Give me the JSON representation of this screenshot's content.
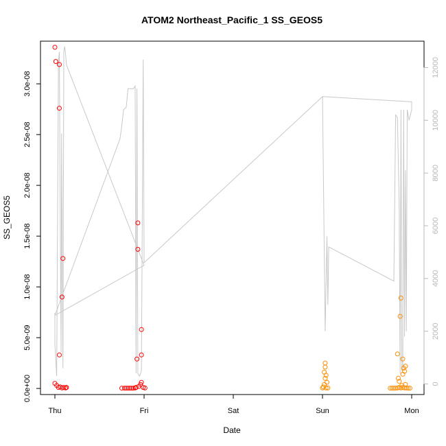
{
  "chart_data": {
    "type": "scatter",
    "title": "ATOM2 Northeast_Pacific_1 SS_GEOS5",
    "xlabel": "Date",
    "ylabel": "SS_GEOS5",
    "x_ticks": [
      "Thu",
      "Fri",
      "Sat",
      "Sun",
      "Mon"
    ],
    "xlim": [
      -0.05,
      4.1
    ],
    "ylim": [
      -6e-10,
      3.42e-08
    ],
    "y_ticks": [
      {
        "v": 0,
        "label": "0.0e+00"
      },
      {
        "v": 5e-09,
        "label": "5.0e-09"
      },
      {
        "v": 1e-08,
        "label": "1.0e-08"
      },
      {
        "v": 1.5e-08,
        "label": "1.5e-08"
      },
      {
        "v": 2e-08,
        "label": "2.0e-08"
      },
      {
        "v": 2.5e-08,
        "label": "2.5e-08"
      },
      {
        "v": 3e-08,
        "label": "3.0e-08"
      }
    ],
    "y2lim": [
      -400,
      13000
    ],
    "y2_ticks": [
      0,
      2000,
      4000,
      6000,
      8000,
      10000,
      12000
    ],
    "grid": false,
    "colors": {
      "red": "#ff0000",
      "orange": "#ff8c00",
      "altitude": "#c8c8c8",
      "axis": "#000000",
      "axis2": "#b8b8b8"
    },
    "series": [
      {
        "color": "red",
        "points": [
          [
            0.0,
            3.36e-08
          ],
          [
            0.01,
            3.22e-08
          ],
          [
            0.05,
            3.19e-08
          ],
          [
            0.05,
            2.76e-08
          ],
          [
            0.09,
            1.28e-08
          ],
          [
            0.08,
            9e-09
          ],
          [
            0.05,
            3.3e-09
          ],
          [
            0.0,
            5e-10
          ],
          [
            0.02,
            3e-10
          ],
          [
            0.04,
            1e-10
          ],
          [
            0.06,
            1.5e-10
          ],
          [
            0.08,
            5e-11
          ],
          [
            0.1,
            1e-10
          ],
          [
            0.12,
            5e-11
          ],
          [
            0.13,
            1e-10
          ],
          [
            0.93,
            1.63e-08
          ],
          [
            0.93,
            1.37e-08
          ],
          [
            0.97,
            5.8e-09
          ],
          [
            0.97,
            3.3e-09
          ],
          [
            0.92,
            2.9e-09
          ],
          [
            0.75,
            3e-11
          ],
          [
            0.78,
            3e-11
          ],
          [
            0.8,
            3e-11
          ],
          [
            0.82,
            3e-11
          ],
          [
            0.84,
            3e-11
          ],
          [
            0.86,
            3e-11
          ],
          [
            0.88,
            3e-11
          ],
          [
            0.9,
            5e-11
          ],
          [
            0.91,
            1e-10
          ],
          [
            0.94,
            2e-10
          ],
          [
            0.96,
            4e-10
          ],
          [
            0.97,
            6e-10
          ],
          [
            0.99,
            1e-10
          ],
          [
            1.01,
            5e-11
          ]
        ]
      },
      {
        "color": "orange",
        "points": [
          [
            3.03,
            2.5e-09
          ],
          [
            3.03,
            2.1e-09
          ],
          [
            3.02,
            1.6e-09
          ],
          [
            3.04,
            1.3e-09
          ],
          [
            3.03,
            1e-09
          ],
          [
            3.05,
            6e-10
          ],
          [
            3.02,
            4e-10
          ],
          [
            3.01,
            1.5e-10
          ],
          [
            3.0,
            5e-11
          ],
          [
            3.04,
            5e-11
          ],
          [
            3.06,
            5e-11
          ],
          [
            3.84,
            3.4e-09
          ],
          [
            3.88,
            8.9e-09
          ],
          [
            3.87,
            7.1e-09
          ],
          [
            3.9,
            2.9e-09
          ],
          [
            3.93,
            2.2e-09
          ],
          [
            3.91,
            2e-09
          ],
          [
            3.92,
            1.7e-09
          ],
          [
            3.9,
            1.4e-09
          ],
          [
            3.85,
            1e-09
          ],
          [
            3.86,
            7e-10
          ],
          [
            3.93,
            4e-10
          ],
          [
            3.89,
            3e-10
          ],
          [
            3.76,
            3e-11
          ],
          [
            3.78,
            3e-11
          ],
          [
            3.8,
            3e-11
          ],
          [
            3.82,
            3e-11
          ],
          [
            3.84,
            5e-11
          ],
          [
            3.86,
            1e-10
          ],
          [
            3.88,
            5e-11
          ],
          [
            3.9,
            1e-10
          ],
          [
            3.92,
            5e-11
          ],
          [
            3.94,
            5e-11
          ],
          [
            3.96,
            3e-11
          ],
          [
            3.98,
            3e-11
          ]
        ]
      }
    ],
    "altitude_line": [
      [
        0.0,
        2700
      ],
      [
        0.0,
        1500
      ],
      [
        0.02,
        300
      ],
      [
        0.04,
        12200
      ],
      [
        0.05,
        12600
      ],
      [
        0.06,
        6000
      ],
      [
        0.07,
        1200
      ],
      [
        0.075,
        9500
      ],
      [
        0.08,
        7000
      ],
      [
        0.09,
        600
      ],
      [
        0.1,
        12600
      ],
      [
        0.11,
        12800
      ],
      [
        0.12,
        12500
      ],
      [
        0.13,
        12100
      ],
      [
        1.0,
        4500
      ],
      [
        0.0,
        2600
      ],
      [
        0.73,
        9300
      ],
      [
        0.75,
        9800
      ],
      [
        0.77,
        10400
      ],
      [
        0.8,
        10500
      ],
      [
        0.82,
        11200
      ],
      [
        0.88,
        11200
      ],
      [
        0.9,
        11300
      ],
      [
        0.91,
        400
      ],
      [
        0.92,
        11200
      ],
      [
        0.93,
        400
      ],
      [
        0.95,
        300
      ],
      [
        0.97,
        500
      ],
      [
        0.99,
        12300
      ],
      [
        1.0,
        4600
      ],
      [
        3.0,
        10900
      ],
      [
        3.03,
        2000
      ],
      [
        3.05,
        5600
      ],
      [
        3.06,
        3000
      ],
      [
        3.07,
        5200
      ],
      [
        3.8,
        3900
      ],
      [
        3.82,
        10200
      ],
      [
        3.84,
        10100
      ],
      [
        3.86,
        6800
      ],
      [
        3.87,
        400
      ],
      [
        3.88,
        10400
      ],
      [
        3.89,
        500
      ],
      [
        3.9,
        600
      ],
      [
        3.91,
        10400
      ],
      [
        3.92,
        1800
      ],
      [
        3.93,
        8100
      ],
      [
        3.94,
        2000
      ],
      [
        3.95,
        10400
      ],
      [
        3.97,
        10000
      ],
      [
        4.0,
        10400
      ],
      [
        4.0,
        10700
      ],
      [
        3.0,
        10900
      ]
    ]
  }
}
